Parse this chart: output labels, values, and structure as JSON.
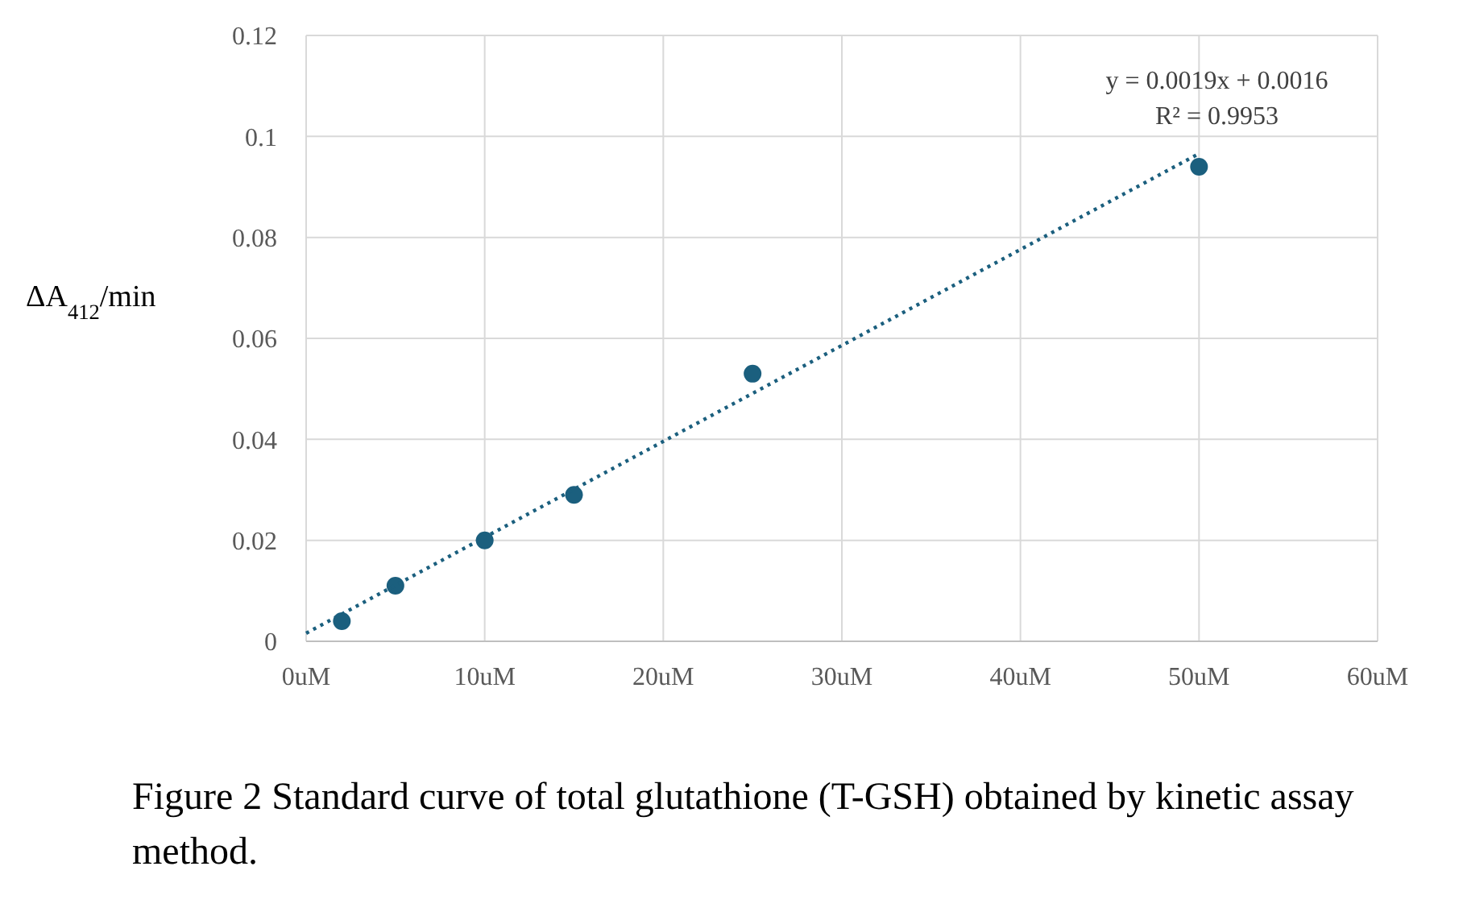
{
  "chart_data": {
    "type": "scatter",
    "ylabel": "ΔA$_{412}$/min",
    "xlim": [
      0,
      60
    ],
    "xticks": [
      {
        "value": 0,
        "label": "0uM"
      },
      {
        "value": 10,
        "label": "10uM"
      },
      {
        "value": 20,
        "label": "20uM"
      },
      {
        "value": 30,
        "label": "30uM"
      },
      {
        "value": 40,
        "label": "40uM"
      },
      {
        "value": 50,
        "label": "50uM"
      },
      {
        "value": 60,
        "label": "60uM"
      }
    ],
    "ylim": [
      0,
      0.12
    ],
    "yticks": [
      0,
      0.02,
      0.04,
      0.06,
      0.08,
      0.1,
      0.12
    ],
    "grid": true,
    "series": [
      {
        "color": "#1b5f7e",
        "marker": "circle",
        "x": [
          2,
          5,
          10,
          15,
          25,
          50
        ],
        "values": [
          0.004,
          0.011,
          0.02,
          0.029,
          0.053,
          0.094
        ]
      },
      {
        "type": "line",
        "color": "#1b5f7e",
        "line_style": "dotted",
        "x": [
          0,
          50
        ],
        "values": [
          0.0016,
          0.0966
        ]
      }
    ],
    "annotations": [
      "y = 0.0019x + 0.0016",
      "R² = 0.9953",
      "Figure 2 Standard curve of total glutathione (T-GSH) obtained by kinetic assay method."
    ]
  }
}
